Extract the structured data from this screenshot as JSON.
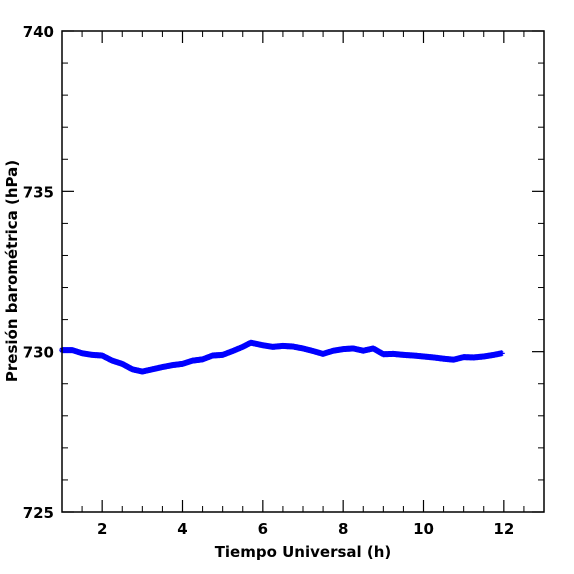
{
  "chart_data": {
    "type": "line",
    "xlabel": "Tiempo Universal (h)",
    "ylabel": "Presión barométrica (hPa)",
    "xlim": [
      1,
      13
    ],
    "ylim": [
      725,
      740
    ],
    "x_ticks": [
      2,
      4,
      6,
      8,
      10,
      12
    ],
    "y_ticks": [
      725,
      730,
      735,
      740
    ],
    "x_tick_labels": [
      "2",
      "4",
      "6",
      "8",
      "10",
      "12"
    ],
    "y_tick_labels": [
      "725",
      "730",
      "735",
      "740"
    ],
    "grid": false,
    "marker": "star",
    "series": [
      {
        "color": "#0000ff",
        "points": [
          [
            1.0,
            730.05
          ],
          [
            1.25,
            730.05
          ],
          [
            1.5,
            729.95
          ],
          [
            1.75,
            729.9
          ],
          [
            2.0,
            729.88
          ],
          [
            2.25,
            729.72
          ],
          [
            2.5,
            729.62
          ],
          [
            2.75,
            729.45
          ],
          [
            3.0,
            729.38
          ],
          [
            3.25,
            729.45
          ],
          [
            3.5,
            729.52
          ],
          [
            3.75,
            729.58
          ],
          [
            4.0,
            729.62
          ],
          [
            4.25,
            729.72
          ],
          [
            4.5,
            729.76
          ],
          [
            4.75,
            729.88
          ],
          [
            5.0,
            729.9
          ],
          [
            5.25,
            730.02
          ],
          [
            5.5,
            730.15
          ],
          [
            5.7,
            730.28
          ],
          [
            6.0,
            730.2
          ],
          [
            6.25,
            730.15
          ],
          [
            6.5,
            730.18
          ],
          [
            6.75,
            730.16
          ],
          [
            7.0,
            730.1
          ],
          [
            7.25,
            730.02
          ],
          [
            7.5,
            729.93
          ],
          [
            7.75,
            730.03
          ],
          [
            8.0,
            730.08
          ],
          [
            8.25,
            730.1
          ],
          [
            8.5,
            730.03
          ],
          [
            8.75,
            730.1
          ],
          [
            9.0,
            729.92
          ],
          [
            9.25,
            729.93
          ],
          [
            9.5,
            729.9
          ],
          [
            9.75,
            729.88
          ],
          [
            10.0,
            729.85
          ],
          [
            10.25,
            729.82
          ],
          [
            10.5,
            729.78
          ],
          [
            10.75,
            729.75
          ],
          [
            11.0,
            729.83
          ],
          [
            11.25,
            729.82
          ],
          [
            11.5,
            729.85
          ],
          [
            11.75,
            729.9
          ],
          [
            11.95,
            729.95
          ]
        ]
      }
    ]
  }
}
